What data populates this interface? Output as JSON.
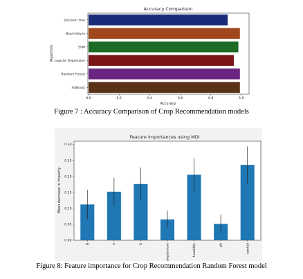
{
  "figure1": {
    "caption": "Figure 7 : Accuracy Comparison of Crop Recommendation models"
  },
  "figure2": {
    "caption": "Figure 8: Feature importance for Crop Recommendation Random Forest model"
  },
  "chart_data": [
    {
      "type": "bar",
      "orientation": "horizontal",
      "title": "Accuracy Comparison",
      "xlabel": "Accuracy",
      "ylabel": "Algorithm",
      "categories": [
        "Decision Tree",
        "Naive Bayes",
        "SVM",
        "Logistic Regression",
        "Random Forest",
        "XGBoost"
      ],
      "values": [
        0.91,
        0.99,
        0.98,
        0.95,
        0.99,
        0.99
      ],
      "colors": [
        "#1a2b7a",
        "#a0471d",
        "#1c6b25",
        "#7a1616",
        "#6a2580",
        "#5a3217"
      ],
      "xlim": [
        0,
        1.0
      ],
      "xticks": [
        "0.0",
        "0.2",
        "0.4",
        "0.6",
        "0.8",
        "1.0"
      ],
      "grid": false,
      "legend": "none"
    },
    {
      "type": "bar",
      "title": "Feature importances using MDI",
      "xlabel": "",
      "ylabel": "Mean decrease in impurity",
      "categories": [
        "N",
        "P",
        "K",
        "temperature",
        "humidity",
        "ph",
        "rainfall"
      ],
      "values": [
        0.112,
        0.152,
        0.176,
        0.065,
        0.205,
        0.051,
        0.236
      ],
      "errors": [
        0.046,
        0.043,
        0.052,
        0.028,
        0.053,
        0.029,
        0.058
      ],
      "color": "#1f77b4",
      "ylim": [
        0,
        0.31
      ],
      "yticks": [
        "0.00",
        "0.05",
        "0.10",
        "0.15",
        "0.20",
        "0.25",
        "0.30"
      ],
      "grid": false,
      "legend": "none"
    }
  ]
}
